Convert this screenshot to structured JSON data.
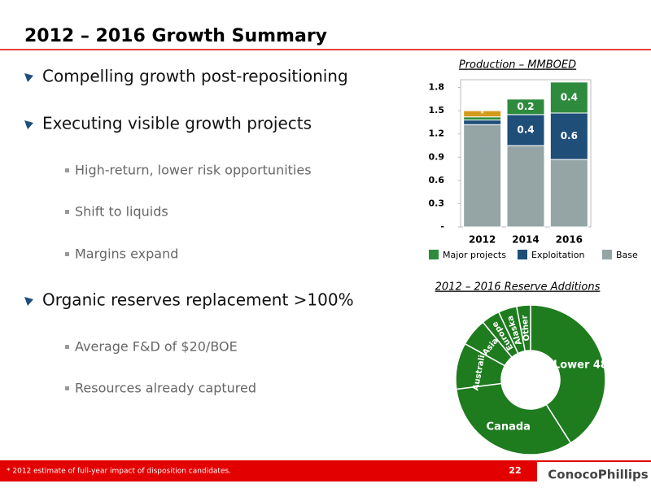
{
  "slide": {
    "title": "2012 – 2016 Growth Summary",
    "bullets": [
      {
        "text": "Compelling growth post-repositioning"
      },
      {
        "text": "Executing visible growth projects",
        "sub": [
          "High-return, lower risk opportunities",
          "Shift to liquids",
          "Margins expand"
        ]
      },
      {
        "text": "Organic reserves replacement >100%",
        "sub": [
          "Average F&D of $20/BOE",
          "Resources already captured"
        ]
      }
    ]
  },
  "chart_data": [
    {
      "type": "bar",
      "stacked": true,
      "title": "Production – MMBOED",
      "categories": [
        "2012",
        "2014",
        "2016"
      ],
      "series": [
        {
          "name": "Base",
          "color": "#95a5a6",
          "values": [
            1.32,
            1.05,
            0.87
          ]
        },
        {
          "name": "Exploitation",
          "color": "#1f4e79",
          "values": [
            0.06,
            0.4,
            0.6
          ],
          "value_labels": [
            null,
            "0.4",
            "0.6"
          ]
        },
        {
          "name": "Major projects",
          "color": "#2e8b3e",
          "values": [
            0.04,
            0.2,
            0.4
          ],
          "value_labels": [
            null,
            "0.2",
            "0.4"
          ]
        },
        {
          "name": "*",
          "color": "#d49a1a",
          "values": [
            0.08,
            null,
            null
          ],
          "legend": false
        }
      ],
      "ylim": [
        0,
        1.9
      ],
      "yticks": [
        {
          "value": 0,
          "label": "-"
        },
        0.3,
        0.6,
        0.9,
        1.2,
        1.5,
        1.8
      ]
    },
    {
      "type": "pie",
      "donut": true,
      "title": "2012 – 2016 Reserve Additions",
      "categories": [
        "Lower 48",
        "Canada",
        "Australia",
        "Asia",
        "Europe",
        "Alaska",
        "Other"
      ],
      "values": [
        41,
        32,
        10,
        6,
        4,
        4,
        3
      ],
      "color": "#1e7b1e"
    }
  ],
  "footer": {
    "note": "* 2012 estimate of full-year impact of disposition candidates.",
    "page": 22,
    "logo": "ConocoPhillips"
  }
}
